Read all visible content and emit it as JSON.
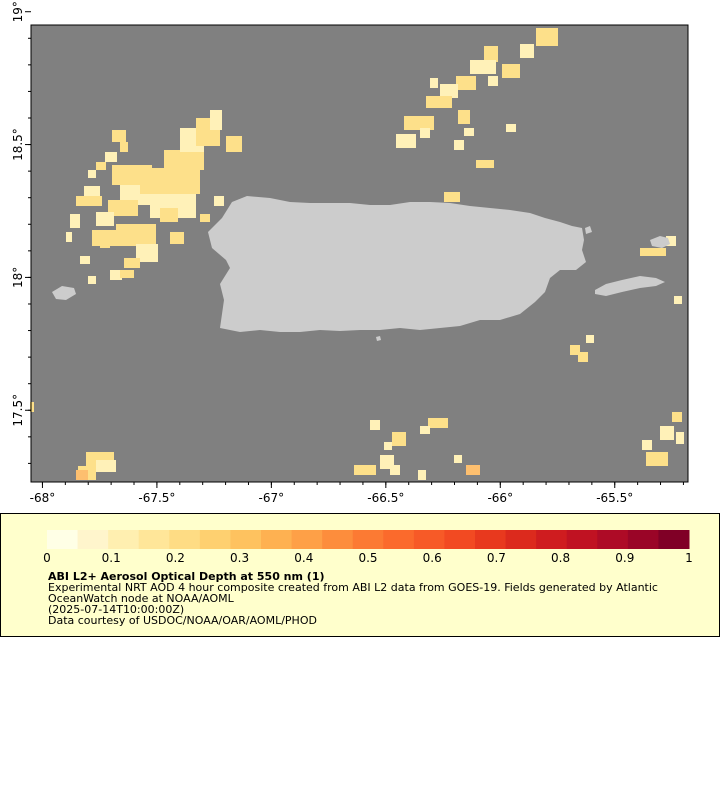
{
  "map": {
    "lon_range": [
      -68.05,
      -65.18
    ],
    "lat_range": [
      17.23,
      18.95
    ],
    "x_ticks": [
      {
        "value": -68,
        "label": "-68°"
      },
      {
        "value": -67.5,
        "label": "-67.5°"
      },
      {
        "value": -67,
        "label": "-67°"
      },
      {
        "value": -66.5,
        "label": "-66.5°"
      },
      {
        "value": -66,
        "label": "-66°"
      },
      {
        "value": -65.5,
        "label": "-65.5°"
      }
    ],
    "y_ticks": [
      {
        "value": 19,
        "label": "19°"
      },
      {
        "value": 18.5,
        "label": "18.5°"
      },
      {
        "value": 18,
        "label": "18°"
      },
      {
        "value": 17.5,
        "label": "17.5°"
      }
    ],
    "colors": {
      "ocean": "#808080",
      "land": "#cccccc",
      "aod_low": "#fff1b8",
      "aod_mid": "#fde08a",
      "aod_high": "#fdbf6f"
    }
  },
  "legend": {
    "ticks": [
      "0",
      "0.1",
      "0.2",
      "0.3",
      "0.4",
      "0.5",
      "0.6",
      "0.7",
      "0.8",
      "0.9",
      "1"
    ],
    "colors": [
      "#ffffe6",
      "#fff5cc",
      "#ffefb0",
      "#ffe699",
      "#fedc84",
      "#fed070",
      "#fec25f",
      "#feb151",
      "#fea047",
      "#fd8d3c",
      "#fc7a33",
      "#fb6a2c",
      "#f75a27",
      "#f24a22",
      "#e8391e",
      "#dc2a1d",
      "#cf1c1f",
      "#c01222",
      "#ae0b26",
      "#9a0527",
      "#800026"
    ],
    "title": "ABI L2+ Aerosol Optical Depth at 550 nm (1)",
    "line1": "Experimental NRT AOD 4 hour composite created from ABI L2 data from GOES-19. Fields generated by Atlantic OceanWatch node at NOAA/AOML",
    "line2": "(2025-07-14T10:00:00Z)",
    "line3": "Data courtesy of USDOC/NOAA/OAR/AOML/PHOD"
  }
}
